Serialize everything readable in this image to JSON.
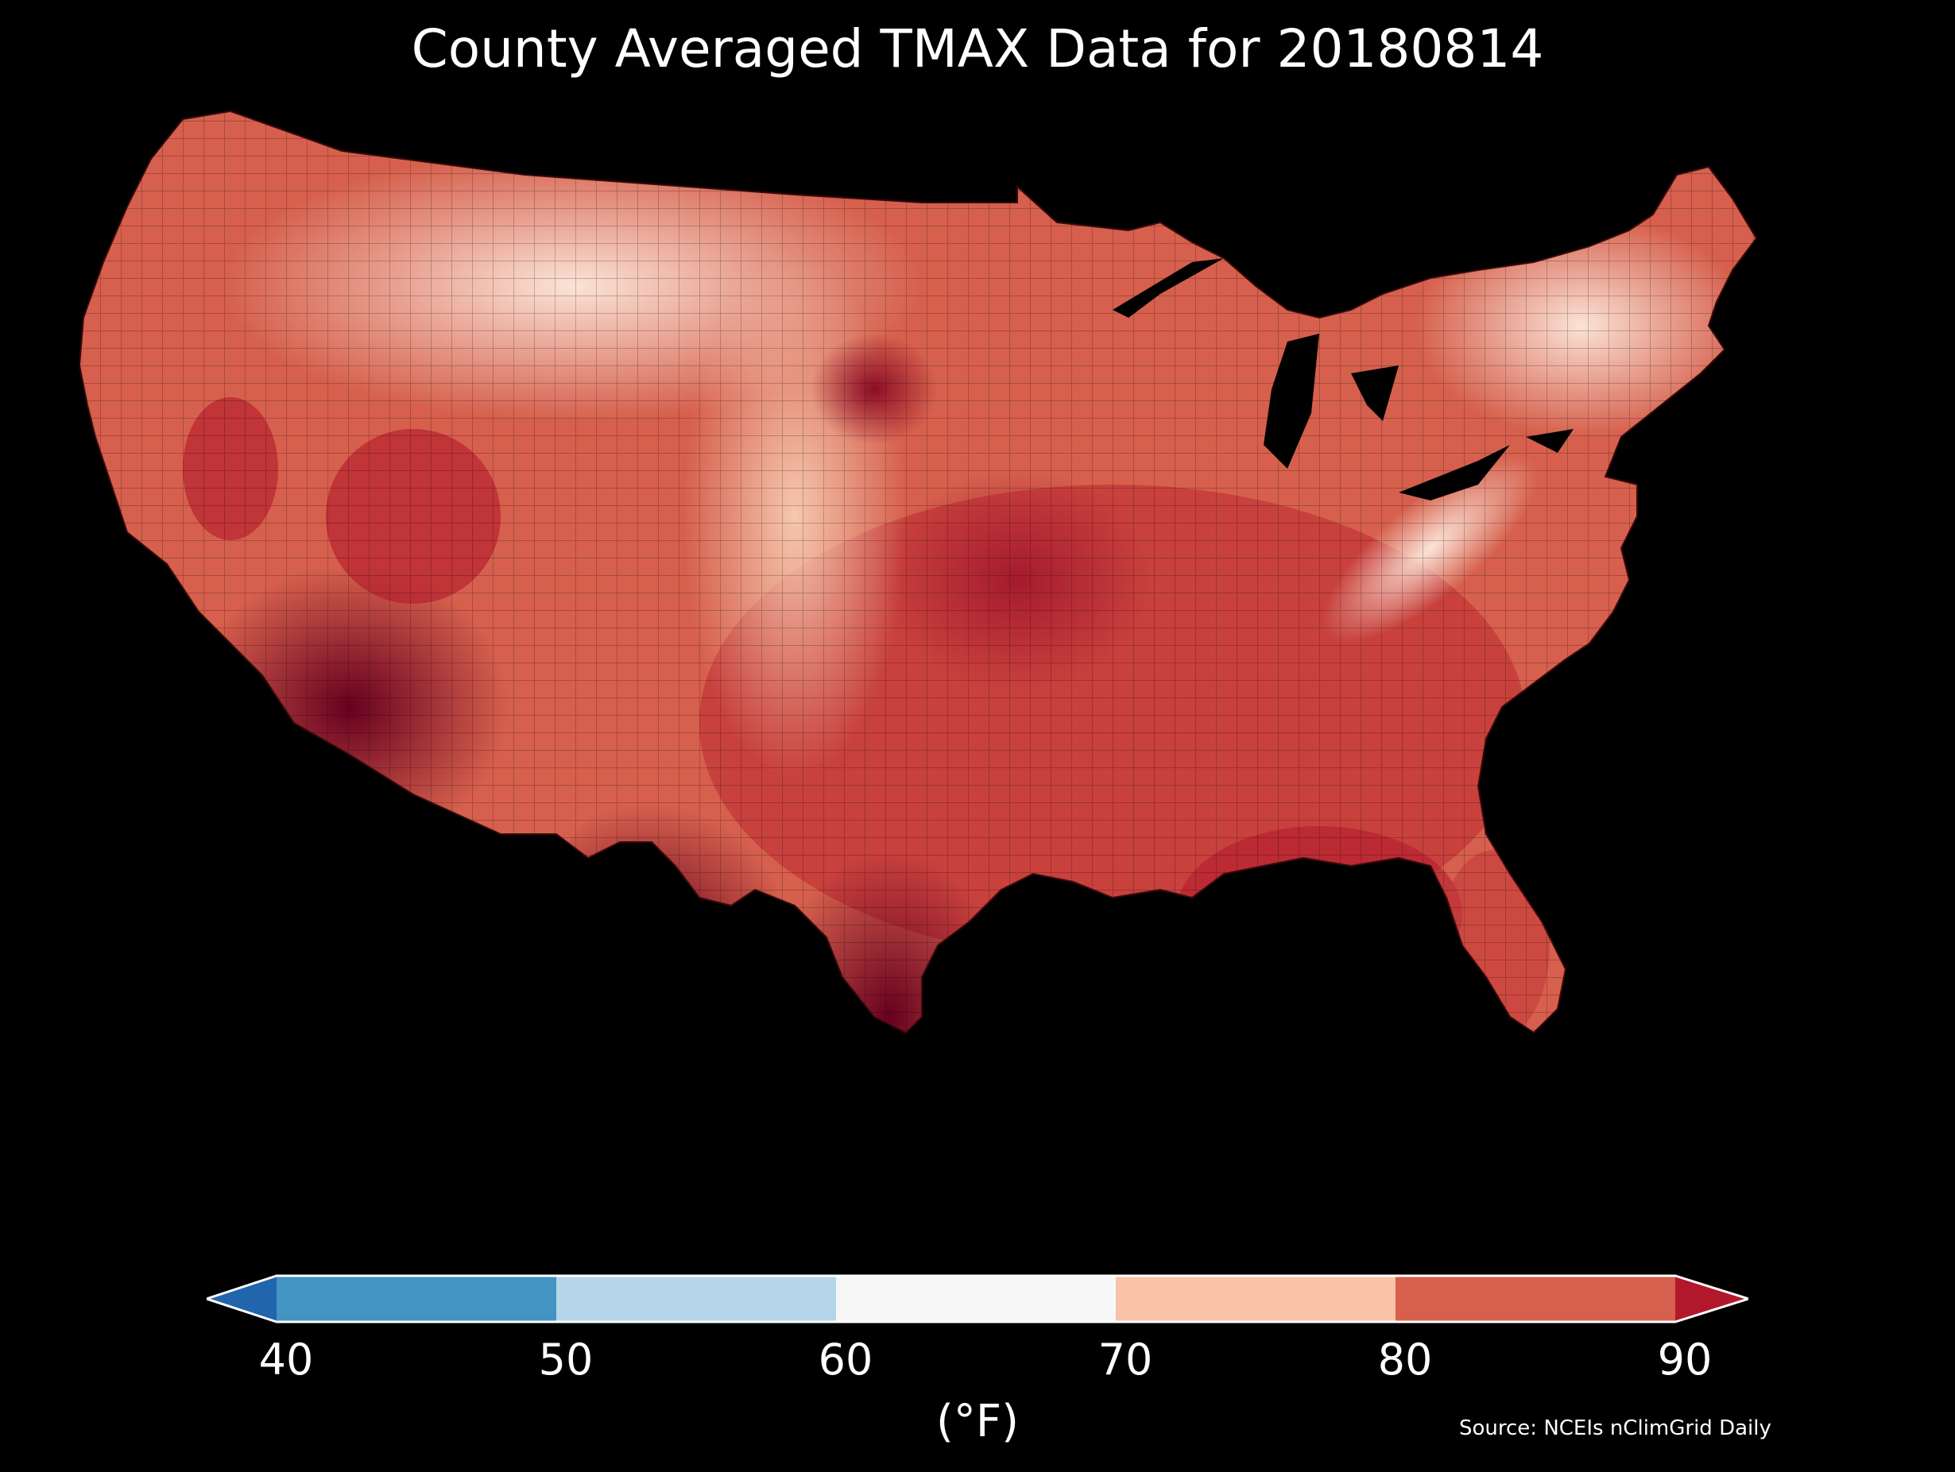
{
  "title": "County Averaged TMAX Data for 20180814",
  "unit_label": "(°F)",
  "source": "Source: NCEIs nClimGrid Daily",
  "colorbar": {
    "ticks": [
      "40",
      "50",
      "60",
      "70",
      "80",
      "90"
    ],
    "bins": [
      {
        "range": [
          40,
          50
        ],
        "color": "#4393c3"
      },
      {
        "range": [
          50,
          60
        ],
        "color": "#b4d6e8"
      },
      {
        "range": [
          60,
          70
        ],
        "color": "#f7f7f7"
      },
      {
        "range": [
          70,
          80
        ],
        "color": "#f8c3a8"
      },
      {
        "range": [
          80,
          90
        ],
        "color": "#d6604d"
      }
    ],
    "under_color": "#2166ac",
    "over_color": "#b2182b"
  },
  "map": {
    "region": "Contiguous United States counties",
    "colors": {
      "cool_northeast": "#fbe6da",
      "mild_plains": "#f4b99e",
      "warm": "#d6604d",
      "hot": "#b2182b",
      "very_hot": "#67001f",
      "water": "#000000"
    }
  }
}
